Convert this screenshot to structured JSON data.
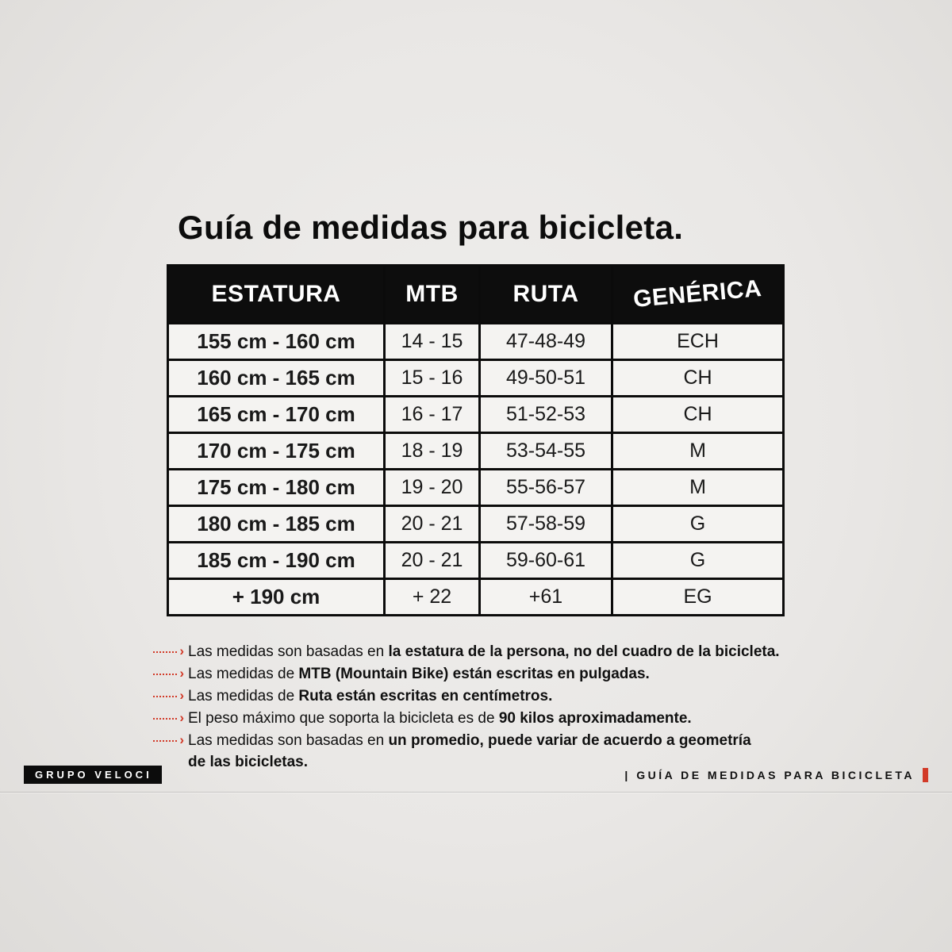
{
  "page": {
    "title": "Guía de medidas para bicicleta."
  },
  "table": {
    "headers": [
      "ESTATURA",
      "MTB",
      "RUTA",
      "GENÉRICA"
    ],
    "rows": [
      {
        "estatura": "155 cm - 160 cm",
        "mtb": "14 - 15",
        "ruta": "47-48-49",
        "generica": "ECH"
      },
      {
        "estatura": "160 cm - 165 cm",
        "mtb": "15 - 16",
        "ruta": "49-50-51",
        "generica": "CH"
      },
      {
        "estatura": "165 cm - 170 cm",
        "mtb": "16 - 17",
        "ruta": "51-52-53",
        "generica": "CH"
      },
      {
        "estatura": "170 cm - 175 cm",
        "mtb": "18 - 19",
        "ruta": "53-54-55",
        "generica": "M"
      },
      {
        "estatura": "175 cm - 180 cm",
        "mtb": "19 - 20",
        "ruta": "55-56-57",
        "generica": "M"
      },
      {
        "estatura": "180 cm - 185 cm",
        "mtb": "20 - 21",
        "ruta": "57-58-59",
        "generica": "G"
      },
      {
        "estatura": "185 cm - 190 cm",
        "mtb": "20 - 21",
        "ruta": "59-60-61",
        "generica": "G"
      },
      {
        "estatura": "+ 190 cm",
        "mtb": "+ 22",
        "ruta": "+61",
        "generica": "EG"
      }
    ]
  },
  "notes": [
    {
      "prefix": "Las medidas son basadas en ",
      "bold": "la estatura de la persona, no del cuadro de la bicicleta."
    },
    {
      "prefix": "Las medidas de ",
      "bold": "MTB (Mountain Bike) están escritas en pulgadas."
    },
    {
      "prefix": "Las medidas de ",
      "bold": "Ruta están escritas en centímetros."
    },
    {
      "prefix": "El peso máximo que soporta la bicicleta es de ",
      "bold": "90 kilos aproximadamente."
    },
    {
      "prefix": "Las medidas son basadas en ",
      "bold": "un promedio, puede variar de acuerdo a geometría",
      "bold2": "de las bicicletas."
    }
  ],
  "footer": {
    "brand": "GRUPO VELOCI",
    "caption": "| GUÍA DE MEDIDAS PARA BICICLETA"
  },
  "icons": {
    "arrow_chevron": "›"
  },
  "colors": {
    "accent_red": "#d23a28",
    "table_header_bg": "#0d0d0d",
    "background": "#e9e7e5"
  }
}
